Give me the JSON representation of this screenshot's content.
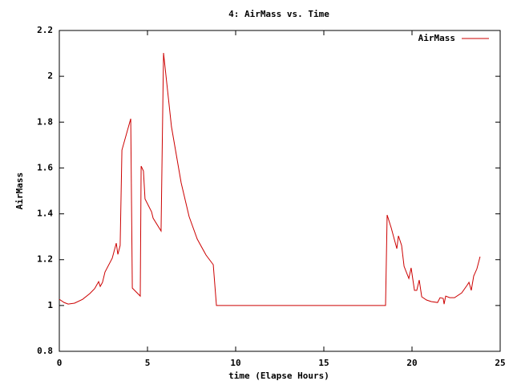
{
  "chart_data": {
    "type": "line",
    "title": "4: AirMass vs. Time",
    "x_label": "time (Elapse Hours)",
    "y_label": "AirMass",
    "xlim": [
      0,
      25
    ],
    "xticks": [
      0,
      5,
      10,
      15,
      20,
      25
    ],
    "ylim": [
      0.8,
      2.2
    ],
    "yticks": [
      0.8,
      1,
      1.2,
      1.4,
      1.6,
      1.8,
      2,
      2.2
    ],
    "legend": "top-right",
    "grid": false,
    "x": [
      0,
      0.27,
      0.5,
      0.86,
      1.32,
      1.73,
      2.0,
      2.23,
      2.32,
      2.45,
      2.59,
      3.0,
      3.23,
      3.32,
      3.45,
      3.55,
      4.05,
      4.14,
      4.59,
      4.64,
      4.77,
      4.86,
      5.23,
      5.32,
      5.77,
      5.91,
      6.36,
      6.91,
      7.36,
      7.82,
      8.32,
      8.73,
      8.91,
      18.5,
      18.59,
      18.82,
      19.14,
      19.23,
      19.41,
      19.55,
      19.82,
      19.95,
      20.14,
      20.27,
      20.41,
      20.55,
      20.82,
      21.09,
      21.45,
      21.59,
      21.77,
      21.82,
      21.91,
      22.14,
      22.41,
      22.82,
      23.14,
      23.23,
      23.36,
      23.5,
      23.68,
      23.86
    ],
    "series": [
      {
        "name": "AirMass",
        "color": "#cc0000",
        "values": [
          1.027,
          1.013,
          1.006,
          1.01,
          1.027,
          1.052,
          1.073,
          1.104,
          1.083,
          1.101,
          1.146,
          1.206,
          1.272,
          1.223,
          1.262,
          1.678,
          1.815,
          1.076,
          1.041,
          1.608,
          1.587,
          1.465,
          1.409,
          1.381,
          1.325,
          2.102,
          1.78,
          1.535,
          1.388,
          1.29,
          1.22,
          1.178,
          1.0,
          1.0,
          1.395,
          1.339,
          1.248,
          1.304,
          1.262,
          1.171,
          1.118,
          1.164,
          1.066,
          1.066,
          1.111,
          1.038,
          1.024,
          1.017,
          1.013,
          1.034,
          1.031,
          1.006,
          1.041,
          1.034,
          1.034,
          1.055,
          1.09,
          1.101,
          1.066,
          1.129,
          1.16,
          1.213
        ]
      }
    ]
  }
}
